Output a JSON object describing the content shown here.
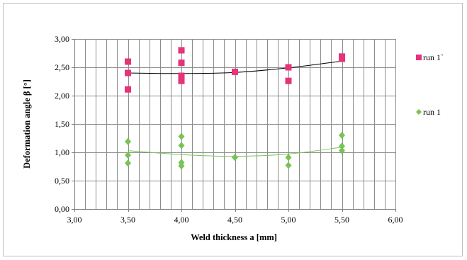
{
  "chart_data": {
    "type": "scatter",
    "title": "",
    "xlabel": "Weld thickness a [mm]",
    "ylabel": "Deformation angle β [°]",
    "xlim": [
      3.0,
      6.0
    ],
    "ylim": [
      0.0,
      3.0
    ],
    "x_ticks": [
      "3,00",
      "3,50",
      "4,00",
      "4,50",
      "5,00",
      "5,50",
      "6,00"
    ],
    "y_ticks": [
      "0,00",
      "0,50",
      "1,00",
      "1,50",
      "2,00",
      "2,50",
      "3,00"
    ],
    "x_tick_values": [
      3.0,
      3.5,
      4.0,
      4.5,
      5.0,
      5.5,
      6.0
    ],
    "y_tick_values": [
      0.0,
      0.5,
      1.0,
      1.5,
      2.0,
      2.5,
      3.0
    ],
    "grid": true,
    "legend_position": "right",
    "series": [
      {
        "name": "run 1`",
        "marker": "square",
        "color": "#e6337a",
        "points": [
          [
            3.5,
            2.6
          ],
          [
            3.5,
            2.4
          ],
          [
            3.5,
            2.11
          ],
          [
            4.0,
            2.8
          ],
          [
            4.0,
            2.58
          ],
          [
            4.0,
            2.35
          ],
          [
            4.0,
            2.26
          ],
          [
            4.5,
            2.42
          ],
          [
            5.0,
            2.5
          ],
          [
            5.0,
            2.26
          ],
          [
            5.5,
            2.69
          ],
          [
            5.5,
            2.65
          ]
        ],
        "trendline": {
          "color": "#000000",
          "points": [
            [
              3.5,
              2.4
            ],
            [
              4.0,
              2.39
            ],
            [
              4.5,
              2.41
            ],
            [
              5.0,
              2.49
            ],
            [
              5.5,
              2.61
            ]
          ]
        }
      },
      {
        "name": "run 1",
        "marker": "diamond",
        "color": "#77c453",
        "points": [
          [
            3.5,
            1.19
          ],
          [
            3.5,
            0.95
          ],
          [
            3.5,
            0.81
          ],
          [
            4.0,
            1.28
          ],
          [
            4.0,
            1.12
          ],
          [
            4.0,
            0.82
          ],
          [
            4.0,
            0.76
          ],
          [
            4.5,
            0.91
          ],
          [
            5.0,
            0.91
          ],
          [
            5.0,
            0.77
          ],
          [
            5.5,
            1.3
          ],
          [
            5.5,
            1.11
          ],
          [
            5.5,
            1.03
          ]
        ],
        "trendline": {
          "color": "#77c453",
          "points": [
            [
              3.5,
              1.03
            ],
            [
              4.0,
              0.96
            ],
            [
              4.5,
              0.93
            ],
            [
              5.0,
              0.97
            ],
            [
              5.5,
              1.09
            ]
          ]
        }
      }
    ]
  }
}
